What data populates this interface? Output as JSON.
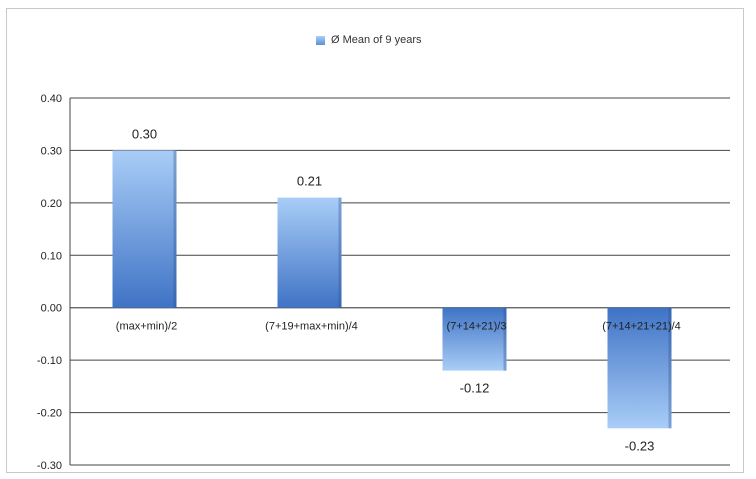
{
  "chart_data": {
    "type": "bar",
    "categories": [
      "(max+min)/2",
      "(7+19+max+min)/4",
      "(7+14+21)/3",
      "(7+14+21+21)/4"
    ],
    "series": [
      {
        "name": "Ø Mean of 9 years",
        "values": [
          0.3,
          0.21,
          -0.12,
          -0.23
        ],
        "color": "#5b8fd8"
      }
    ],
    "data_labels": [
      "0.30",
      "0.21",
      "-0.12",
      "-0.23"
    ],
    "y_tick_labels": [
      "0.40",
      "0.30",
      "0.20",
      "0.10",
      "0.00",
      "-0.10",
      "-0.20",
      "-0.30"
    ],
    "ylim": [
      -0.3,
      0.4
    ],
    "grid": true,
    "legend_position": "top-center"
  }
}
